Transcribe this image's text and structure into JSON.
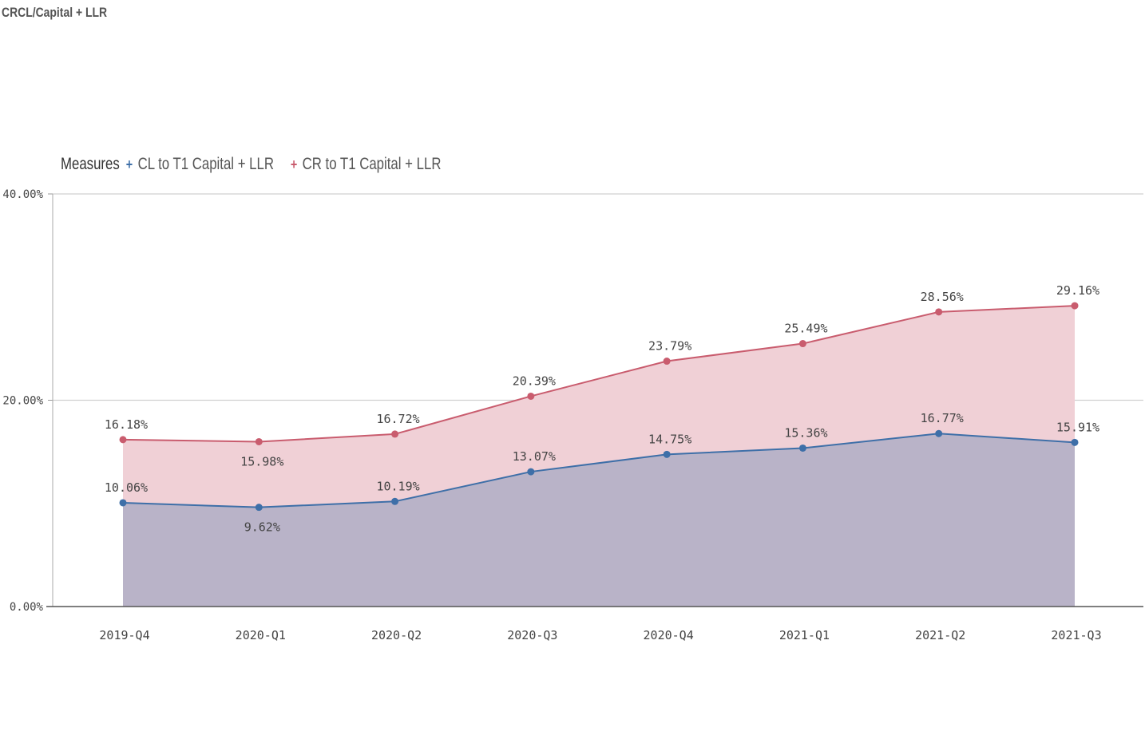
{
  "page": {
    "title": "CRCL/Capital + LLR"
  },
  "legend": {
    "title": "Measures",
    "items": [
      {
        "label": "CL to T1 Capital + LLR",
        "color": "#3e6fa8",
        "marker": "+"
      },
      {
        "label": "CR to T1 Capital + LLR",
        "color": "#c95c6e",
        "marker": "+"
      }
    ]
  },
  "chart_data": {
    "type": "area",
    "title": "CRCL/Capital + LLR",
    "xlabel": "",
    "ylabel": "",
    "categories": [
      "2019-Q4",
      "2020-Q1",
      "2020-Q2",
      "2020-Q3",
      "2020-Q4",
      "2021-Q1",
      "2021-Q2",
      "2021-Q3"
    ],
    "series": [
      {
        "name": "CL to T1 Capital + LLR",
        "values": [
          10.06,
          9.62,
          10.19,
          13.07,
          14.75,
          15.36,
          16.77,
          15.91
        ],
        "labels": [
          "10.06%",
          "9.62%",
          "10.19%",
          "13.07%",
          "14.75%",
          "15.36%",
          "16.77%",
          "15.91%"
        ],
        "line_color": "#3e6fa8",
        "fill_color": "#b9b3c8"
      },
      {
        "name": "CR to T1 Capital + LLR",
        "values": [
          16.18,
          15.98,
          16.72,
          20.39,
          23.79,
          25.49,
          28.56,
          29.16
        ],
        "labels": [
          "16.18%",
          "15.98%",
          "16.72%",
          "20.39%",
          "23.79%",
          "25.49%",
          "28.56%",
          "29.16%"
        ],
        "line_color": "#c95c6e",
        "fill_color": "#f0d0d6"
      }
    ],
    "y_ticks": [
      0,
      20,
      40
    ],
    "y_tick_labels": [
      "0.00%",
      "20.00%",
      "40.00%"
    ],
    "ylim": [
      0,
      40
    ],
    "grid": true,
    "legend_position": "top-left"
  }
}
